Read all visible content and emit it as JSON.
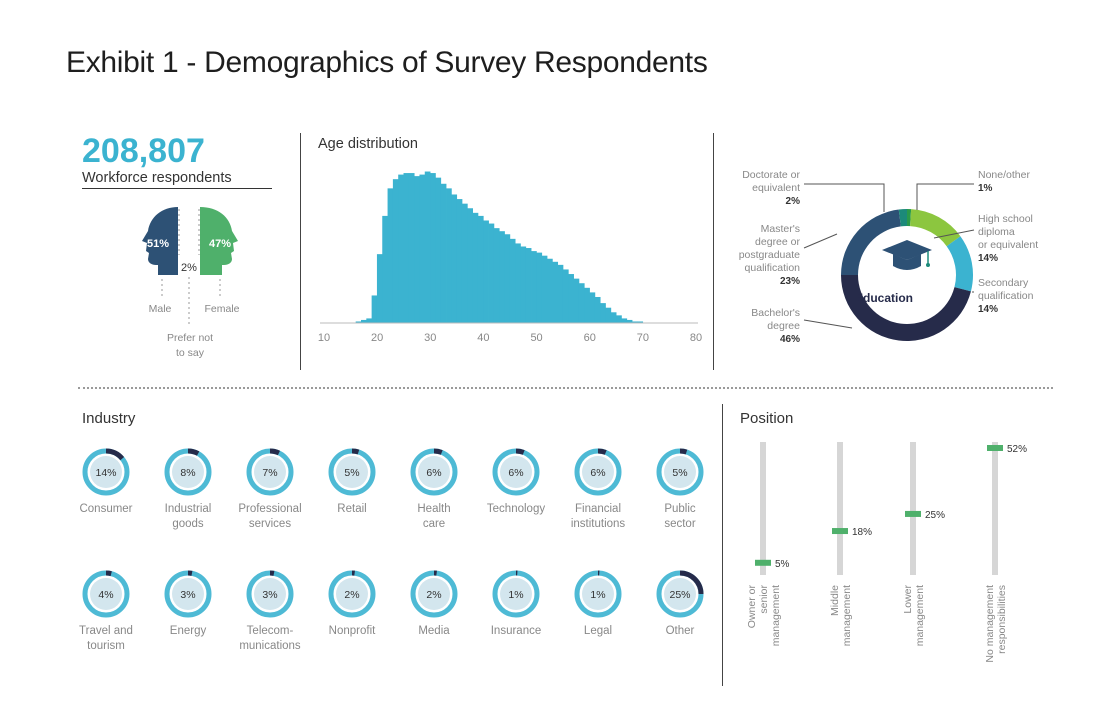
{
  "title": "Exhibit 1 - Demographics of Survey Respondents",
  "respondents": {
    "count": "208,807",
    "label": "Workforce respondents"
  },
  "gender": {
    "male": {
      "pct": "51%",
      "label": "Male",
      "color": "#2d5175"
    },
    "female": {
      "pct": "47%",
      "label": "Female",
      "color": "#4fb06b"
    },
    "prefer_not": {
      "pct": "2%",
      "label_line1": "Prefer not",
      "label_line2": "to say"
    }
  },
  "chart_data": [
    {
      "type": "area",
      "title": "Age distribution",
      "xlabel": "",
      "ylabel": "",
      "xlim": [
        10,
        80
      ],
      "ylim": [
        0,
        100
      ],
      "x_ticks": [
        "10",
        "20",
        "30",
        "40",
        "50",
        "60",
        "70",
        "80"
      ],
      "color": "#3bb3d0",
      "x": [
        15,
        16,
        17,
        18,
        19,
        20,
        21,
        22,
        23,
        24,
        25,
        26,
        27,
        28,
        29,
        30,
        31,
        32,
        33,
        34,
        35,
        36,
        37,
        38,
        39,
        40,
        41,
        42,
        43,
        44,
        45,
        46,
        47,
        48,
        49,
        50,
        51,
        52,
        53,
        54,
        55,
        56,
        57,
        58,
        59,
        60,
        61,
        62,
        63,
        64,
        65,
        66,
        67,
        68,
        69,
        70,
        71,
        72
      ],
      "values": [
        0,
        1,
        2,
        3,
        18,
        45,
        70,
        88,
        94,
        97,
        98,
        98,
        96,
        97,
        99,
        98,
        95,
        91,
        88,
        84,
        81,
        78,
        75,
        72,
        70,
        67,
        65,
        62,
        60,
        58,
        55,
        52,
        50,
        49,
        47,
        46,
        44,
        42,
        40,
        38,
        35,
        32,
        29,
        26,
        23,
        20,
        17,
        13,
        10,
        7,
        5,
        3,
        2,
        1,
        1,
        0,
        0,
        0
      ]
    },
    {
      "type": "pie",
      "title": "Education",
      "categories": [
        "None/other",
        "High school diploma or equivalent",
        "Secondary qualification",
        "Bachelor's degree",
        "Master's degree or postgraduate qualification",
        "Doctorate or equivalent"
      ],
      "values": [
        1,
        14,
        14,
        46,
        23,
        2
      ],
      "colors": [
        "#2a9a4a",
        "#8cc63f",
        "#3bb3d0",
        "#262b4a",
        "#2d5175",
        "#1c8a7a"
      ]
    },
    {
      "type": "bar",
      "title": "Industry",
      "categories": [
        "Consumer",
        "Industrial goods",
        "Professional services",
        "Retail",
        "Health care",
        "Technology",
        "Financial institutions",
        "Public sector",
        "Travel and tourism",
        "Energy",
        "Telecom-munications",
        "Nonprofit",
        "Media",
        "Insurance",
        "Legal",
        "Other"
      ],
      "values": [
        14,
        8,
        7,
        5,
        6,
        6,
        6,
        5,
        4,
        3,
        3,
        2,
        2,
        1,
        1,
        25
      ]
    },
    {
      "type": "bar",
      "title": "Position",
      "categories": [
        "Owner or senior management",
        "Middle management",
        "Lower management",
        "No management responsibilities"
      ],
      "values": [
        5,
        18,
        25,
        52
      ],
      "ylim": [
        0,
        52
      ]
    }
  ],
  "education_labels": [
    {
      "lines": [
        "Doctorate or",
        "equivalent"
      ],
      "pct": "2%"
    },
    {
      "lines": [
        "Master's",
        "degree or",
        "postgraduate",
        "qualification"
      ],
      "pct": "23%"
    },
    {
      "lines": [
        "Bachelor's",
        "degree"
      ],
      "pct": "46%"
    },
    {
      "lines": [
        "None/other"
      ],
      "pct": "1%"
    },
    {
      "lines": [
        "High school",
        "diploma",
        "or equivalent"
      ],
      "pct": "14%"
    },
    {
      "lines": [
        "Secondary",
        "qualification"
      ],
      "pct": "14%"
    }
  ],
  "industry_items": [
    {
      "pct": "14%",
      "label": "Consumer"
    },
    {
      "pct": "8%",
      "label": "Industrial\ngoods"
    },
    {
      "pct": "7%",
      "label": "Professional\nservices"
    },
    {
      "pct": "5%",
      "label": "Retail"
    },
    {
      "pct": "6%",
      "label": "Health\ncare"
    },
    {
      "pct": "6%",
      "label": "Technology"
    },
    {
      "pct": "6%",
      "label": "Financial\ninstitutions"
    },
    {
      "pct": "5%",
      "label": "Public\nsector"
    },
    {
      "pct": "4%",
      "label": "Travel and\ntourism"
    },
    {
      "pct": "3%",
      "label": "Energy"
    },
    {
      "pct": "3%",
      "label": "Telecom-\nmunications"
    },
    {
      "pct": "2%",
      "label": "Nonprofit"
    },
    {
      "pct": "2%",
      "label": "Media"
    },
    {
      "pct": "1%",
      "label": "Insurance"
    },
    {
      "pct": "1%",
      "label": "Legal"
    },
    {
      "pct": "25%",
      "label": "Other"
    }
  ],
  "position_items": [
    {
      "pct": "5%",
      "lines": [
        "Owner or",
        "senior",
        "management"
      ]
    },
    {
      "pct": "18%",
      "lines": [
        "Middle",
        "management"
      ]
    },
    {
      "pct": "25%",
      "lines": [
        "Lower",
        "management"
      ]
    },
    {
      "pct": "52%",
      "lines": [
        "No management",
        "responsibilities"
      ]
    }
  ],
  "colors": {
    "accent": "#3bb3d0",
    "navy": "#2d5175",
    "dark": "#262b4a",
    "green": "#4fb06b",
    "ring_bg": "#c9dfe8"
  }
}
